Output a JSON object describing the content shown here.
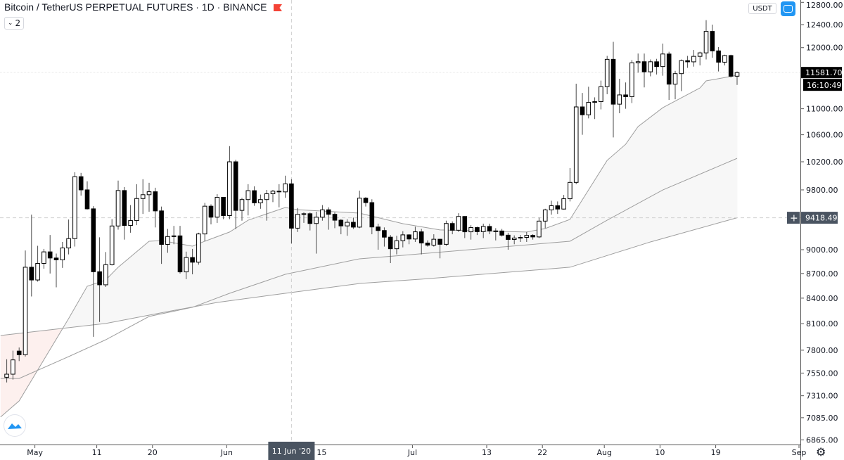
{
  "header": {
    "title": "Bitcoin / TetherUS PERPETUAL FUTURES · 1D · BINANCE",
    "flag_icon": "red-flag-icon",
    "legend_toggle": "2",
    "currency": "USDT",
    "auto_scale_icon": "auto-scale-icon"
  },
  "labels": {
    "last_price": "11581.70",
    "countdown": "16:10:49",
    "crosshair_price": "9418.49",
    "crosshair_plus": "+",
    "crosshair_date": "11 Jun '20"
  },
  "colors": {
    "up_body": "#ffffff",
    "down_body": "#000000",
    "ma_line": "#9e9e9e",
    "fill_above": "#f7f7f7",
    "fill_below": "#fdf0ee",
    "accent": "#2196f3",
    "flag": "#f44336"
  },
  "chart_data": {
    "type": "candlestick",
    "title": "Bitcoin / TetherUS PERPETUAL FUTURES · 1D · BINANCE",
    "y_scale": "log",
    "ylim": [
      6865,
      12800
    ],
    "grid": false,
    "y_ticks": [
      "12800.00",
      "12400.00",
      "12000.00",
      "11000.00",
      "10600.00",
      "10200.00",
      "9800.00",
      "9000.00",
      "8700.00",
      "8400.00",
      "8100.00",
      "7800.00",
      "7550.00",
      "7310.00",
      "7085.00",
      "6865.00"
    ],
    "x_ticks": [
      {
        "date": "2020-05-01",
        "label": "May"
      },
      {
        "date": "2020-05-11",
        "label": "11"
      },
      {
        "date": "2020-05-20",
        "label": "20"
      },
      {
        "date": "2020-06-01",
        "label": "Jun"
      },
      {
        "date": "2020-06-15",
        "label": "15"
      },
      {
        "date": "2020-07-01",
        "label": "Jul"
      },
      {
        "date": "2020-07-13",
        "label": "13"
      },
      {
        "date": "2020-07-22",
        "label": "22"
      },
      {
        "date": "2020-08-01",
        "label": "Aug"
      },
      {
        "date": "2020-08-10",
        "label": "10"
      },
      {
        "date": "2020-08-19",
        "label": "19"
      },
      {
        "date": "2020-09-01",
        "label": "Sep"
      }
    ],
    "crosshair": {
      "date": "2020-06-11",
      "price": 9418.49
    },
    "last_price": 11581.7,
    "candles_fields": [
      "date",
      "open",
      "high",
      "low",
      "close"
    ],
    "candles": [
      [
        "2020-04-26",
        7505,
        7700,
        7450,
        7538
      ],
      [
        "2020-04-27",
        7538,
        7795,
        7480,
        7693
      ],
      [
        "2020-04-28",
        7790,
        7830,
        7680,
        7750
      ],
      [
        "2020-04-29",
        7750,
        8990,
        7730,
        8778
      ],
      [
        "2020-04-30",
        8778,
        9460,
        8420,
        8620
      ],
      [
        "2020-05-01",
        8620,
        9050,
        8600,
        8826
      ],
      [
        "2020-05-02",
        8826,
        9010,
        8760,
        8972
      ],
      [
        "2020-05-03",
        8972,
        9190,
        8700,
        8894
      ],
      [
        "2020-05-04",
        8894,
        8950,
        8530,
        8871
      ],
      [
        "2020-05-05",
        8871,
        9100,
        8770,
        9022
      ],
      [
        "2020-05-06",
        9022,
        9395,
        8940,
        9143
      ],
      [
        "2020-05-07",
        9143,
        10050,
        9040,
        9986
      ],
      [
        "2020-05-08",
        9986,
        10040,
        9720,
        9800
      ],
      [
        "2020-05-09",
        9800,
        9920,
        9530,
        9539
      ],
      [
        "2020-05-10",
        9539,
        9575,
        7950,
        8722
      ],
      [
        "2020-05-11",
        8722,
        9160,
        8120,
        8561
      ],
      [
        "2020-05-12",
        8561,
        8970,
        8535,
        8810
      ],
      [
        "2020-05-13",
        8810,
        9400,
        8800,
        9309
      ],
      [
        "2020-05-14",
        9309,
        9930,
        9260,
        9791
      ],
      [
        "2020-05-15",
        9791,
        9840,
        9130,
        9316
      ],
      [
        "2020-05-16",
        9316,
        9590,
        9220,
        9381
      ],
      [
        "2020-05-17",
        9381,
        9880,
        9320,
        9680
      ],
      [
        "2020-05-18",
        9680,
        9950,
        9470,
        9733
      ],
      [
        "2020-05-19",
        9733,
        9900,
        9500,
        9774
      ],
      [
        "2020-05-20",
        9774,
        9830,
        9290,
        9511
      ],
      [
        "2020-05-21",
        9511,
        9570,
        8820,
        9068
      ],
      [
        "2020-05-22",
        9068,
        9270,
        8960,
        9170
      ],
      [
        "2020-05-23",
        9170,
        9310,
        9070,
        9179
      ],
      [
        "2020-05-24",
        9179,
        9310,
        8700,
        8720
      ],
      [
        "2020-05-25",
        8720,
        8975,
        8630,
        8900
      ],
      [
        "2020-05-26",
        8900,
        9010,
        8690,
        8841
      ],
      [
        "2020-05-27",
        8841,
        9220,
        8810,
        9204
      ],
      [
        "2020-05-28",
        9204,
        9620,
        9110,
        9575
      ],
      [
        "2020-05-29",
        9575,
        9600,
        9330,
        9427
      ],
      [
        "2020-05-30",
        9427,
        9740,
        9350,
        9697
      ],
      [
        "2020-05-31",
        9697,
        9700,
        9400,
        9448
      ],
      [
        "2020-06-01",
        9448,
        10430,
        9400,
        10200
      ],
      [
        "2020-06-02",
        10200,
        10230,
        9270,
        9518
      ],
      [
        "2020-06-03",
        9518,
        9690,
        9380,
        9666
      ],
      [
        "2020-06-04",
        9666,
        9880,
        9450,
        9789
      ],
      [
        "2020-06-05",
        9789,
        9850,
        9580,
        9621
      ],
      [
        "2020-06-06",
        9621,
        9735,
        9540,
        9666
      ],
      [
        "2020-06-07",
        9666,
        9800,
        9380,
        9746
      ],
      [
        "2020-06-08",
        9746,
        9800,
        9630,
        9782
      ],
      [
        "2020-06-09",
        9782,
        9880,
        9560,
        9772
      ],
      [
        "2020-06-10",
        9772,
        10000,
        9690,
        9885
      ],
      [
        "2020-06-11",
        9885,
        9950,
        9080,
        9280
      ],
      [
        "2020-06-12",
        9280,
        9550,
        9230,
        9465
      ],
      [
        "2020-06-13",
        9465,
        9490,
        9350,
        9473
      ],
      [
        "2020-06-14",
        9473,
        9490,
        9250,
        9342
      ],
      [
        "2020-06-15",
        9342,
        9500,
        8950,
        9426
      ],
      [
        "2020-06-16",
        9426,
        9590,
        9380,
        9526
      ],
      [
        "2020-06-17",
        9526,
        9560,
        9260,
        9465
      ],
      [
        "2020-06-18",
        9465,
        9490,
        9280,
        9386
      ],
      [
        "2020-06-19",
        9386,
        9400,
        9200,
        9310
      ],
      [
        "2020-06-20",
        9310,
        9400,
        9180,
        9358
      ],
      [
        "2020-06-21",
        9358,
        9420,
        9270,
        9294
      ],
      [
        "2020-06-22",
        9294,
        9790,
        9280,
        9685
      ],
      [
        "2020-06-23",
        9685,
        9700,
        9570,
        9624
      ],
      [
        "2020-06-24",
        9624,
        9670,
        9200,
        9296
      ],
      [
        "2020-06-25",
        9296,
        9340,
        9000,
        9249
      ],
      [
        "2020-06-26",
        9249,
        9290,
        9040,
        9162
      ],
      [
        "2020-06-27",
        9162,
        9190,
        8830,
        9012
      ],
      [
        "2020-06-28",
        9012,
        9180,
        8940,
        9116
      ],
      [
        "2020-06-29",
        9116,
        9240,
        9030,
        9192
      ],
      [
        "2020-06-30",
        9192,
        9200,
        9070,
        9138
      ],
      [
        "2020-07-01",
        9138,
        9300,
        9100,
        9232
      ],
      [
        "2020-07-02",
        9232,
        9270,
        8940,
        9086
      ],
      [
        "2020-07-03",
        9086,
        9120,
        9040,
        9058
      ],
      [
        "2020-07-04",
        9058,
        9200,
        9040,
        9135
      ],
      [
        "2020-07-05",
        9135,
        9140,
        8890,
        9069
      ],
      [
        "2020-07-06",
        9069,
        9380,
        9050,
        9342
      ],
      [
        "2020-07-07",
        9342,
        9370,
        9200,
        9253
      ],
      [
        "2020-07-08",
        9253,
        9480,
        9230,
        9436
      ],
      [
        "2020-07-09",
        9436,
        9440,
        9150,
        9232
      ],
      [
        "2020-07-10",
        9232,
        9320,
        9130,
        9288
      ],
      [
        "2020-07-11",
        9288,
        9300,
        9190,
        9234
      ],
      [
        "2020-07-12",
        9234,
        9340,
        9150,
        9303
      ],
      [
        "2020-07-13",
        9303,
        9340,
        9200,
        9243
      ],
      [
        "2020-07-14",
        9243,
        9280,
        9120,
        9244
      ],
      [
        "2020-07-15",
        9243,
        9270,
        9170,
        9188
      ],
      [
        "2020-07-16",
        9188,
        9220,
        9000,
        9132
      ],
      [
        "2020-07-17",
        9132,
        9185,
        9070,
        9151
      ],
      [
        "2020-07-18",
        9151,
        9190,
        9100,
        9159
      ],
      [
        "2020-07-19",
        9159,
        9230,
        9100,
        9185
      ],
      [
        "2020-07-20",
        9185,
        9200,
        9130,
        9165
      ],
      [
        "2020-07-21",
        9165,
        9420,
        9150,
        9374
      ],
      [
        "2020-07-22",
        9374,
        9540,
        9280,
        9525
      ],
      [
        "2020-07-23",
        9525,
        9650,
        9460,
        9581
      ],
      [
        "2020-07-24",
        9581,
        9640,
        9470,
        9536
      ],
      [
        "2020-07-25",
        9536,
        9730,
        9530,
        9677
      ],
      [
        "2020-07-26",
        9677,
        10110,
        9640,
        9905
      ],
      [
        "2020-07-27",
        9905,
        11400,
        9880,
        11029
      ],
      [
        "2020-07-28",
        11029,
        11250,
        10600,
        10906
      ],
      [
        "2020-07-29",
        10906,
        11350,
        10850,
        11100
      ],
      [
        "2020-07-30",
        11100,
        11180,
        10840,
        11112
      ],
      [
        "2020-07-31",
        11112,
        11450,
        10990,
        11352
      ],
      [
        "2020-08-01",
        11352,
        11860,
        11230,
        11802
      ],
      [
        "2020-08-02",
        11802,
        12100,
        10560,
        11072
      ],
      [
        "2020-08-03",
        11072,
        11480,
        10930,
        11219
      ],
      [
        "2020-08-04",
        11219,
        11420,
        11000,
        11191
      ],
      [
        "2020-08-05",
        11191,
        11790,
        11090,
        11744
      ],
      [
        "2020-08-06",
        11744,
        11900,
        11580,
        11762
      ],
      [
        "2020-08-07",
        11762,
        11900,
        11340,
        11594
      ],
      [
        "2020-08-08",
        11594,
        11800,
        11520,
        11761
      ],
      [
        "2020-08-09",
        11761,
        11810,
        11550,
        11681
      ],
      [
        "2020-08-10",
        11681,
        12070,
        11530,
        11892
      ],
      [
        "2020-08-11",
        11892,
        11930,
        11140,
        11392
      ],
      [
        "2020-08-12",
        11392,
        11610,
        11150,
        11564
      ],
      [
        "2020-08-13",
        11564,
        11800,
        11280,
        11780
      ],
      [
        "2020-08-14",
        11780,
        11860,
        11660,
        11760
      ],
      [
        "2020-08-15",
        11760,
        11960,
        11680,
        11852
      ],
      [
        "2020-08-16",
        11852,
        11930,
        11700,
        11911
      ],
      [
        "2020-08-17",
        11911,
        12480,
        11800,
        12281
      ],
      [
        "2020-08-18",
        12281,
        12400,
        11830,
        11945
      ],
      [
        "2020-08-19",
        11945,
        12010,
        11600,
        11754
      ],
      [
        "2020-08-20",
        11754,
        11880,
        11700,
        11866
      ],
      [
        "2020-08-21",
        11866,
        11880,
        11500,
        11522
      ],
      [
        "2020-08-22",
        11522,
        11600,
        11380,
        11581.7
      ]
    ],
    "moving_averages": [
      {
        "role": "fast",
        "points": [
          [
            "2020-04-25",
            7092
          ],
          [
            "2020-04-28",
            7256
          ],
          [
            "2020-05-06",
            8160
          ],
          [
            "2020-05-09",
            8543
          ],
          [
            "2020-05-12",
            8621
          ],
          [
            "2020-05-14",
            8778
          ],
          [
            "2020-05-19",
            9109
          ],
          [
            "2020-05-21",
            9118
          ],
          [
            "2020-05-26",
            9045
          ],
          [
            "2020-05-28",
            9109
          ],
          [
            "2020-06-01",
            9229
          ],
          [
            "2020-06-04",
            9386
          ],
          [
            "2020-06-10",
            9557
          ],
          [
            "2020-06-12",
            9528
          ],
          [
            "2020-06-22",
            9481
          ],
          [
            "2020-06-29",
            9340
          ],
          [
            "2020-07-05",
            9257
          ],
          [
            "2020-07-19",
            9229
          ],
          [
            "2020-07-22",
            9276
          ],
          [
            "2020-07-26",
            9396
          ],
          [
            "2020-08-01",
            10220
          ],
          [
            "2020-08-04",
            10458
          ],
          [
            "2020-08-06",
            10724
          ],
          [
            "2020-08-10",
            11017
          ],
          [
            "2020-08-16",
            11331
          ],
          [
            "2020-08-17",
            11445
          ],
          [
            "2020-08-22",
            11537
          ]
        ]
      },
      {
        "role": "medium",
        "points": [
          [
            "2020-04-25",
            7492
          ],
          [
            "2020-04-28",
            7492
          ],
          [
            "2020-05-06",
            7729
          ],
          [
            "2020-05-12",
            7917
          ],
          [
            "2020-05-19",
            8184
          ],
          [
            "2020-05-26",
            8291
          ],
          [
            "2020-06-01",
            8458
          ],
          [
            "2020-06-10",
            8690
          ],
          [
            "2020-06-22",
            8884
          ],
          [
            "2020-06-29",
            8928
          ],
          [
            "2020-07-26",
            9109
          ],
          [
            "2020-08-01",
            9386
          ],
          [
            "2020-08-10",
            9799
          ],
          [
            "2020-08-22",
            10250
          ]
        ]
      },
      {
        "role": "slow",
        "points": [
          [
            "2020-04-25",
            7965
          ],
          [
            "2020-05-12",
            8103
          ],
          [
            "2020-05-22",
            8241
          ],
          [
            "2020-05-30",
            8349
          ],
          [
            "2020-06-10",
            8458
          ],
          [
            "2020-06-22",
            8577
          ],
          [
            "2020-07-02",
            8630
          ],
          [
            "2020-07-26",
            8778
          ],
          [
            "2020-08-08",
            9100
          ],
          [
            "2020-08-22",
            9418.49
          ]
        ]
      }
    ]
  }
}
